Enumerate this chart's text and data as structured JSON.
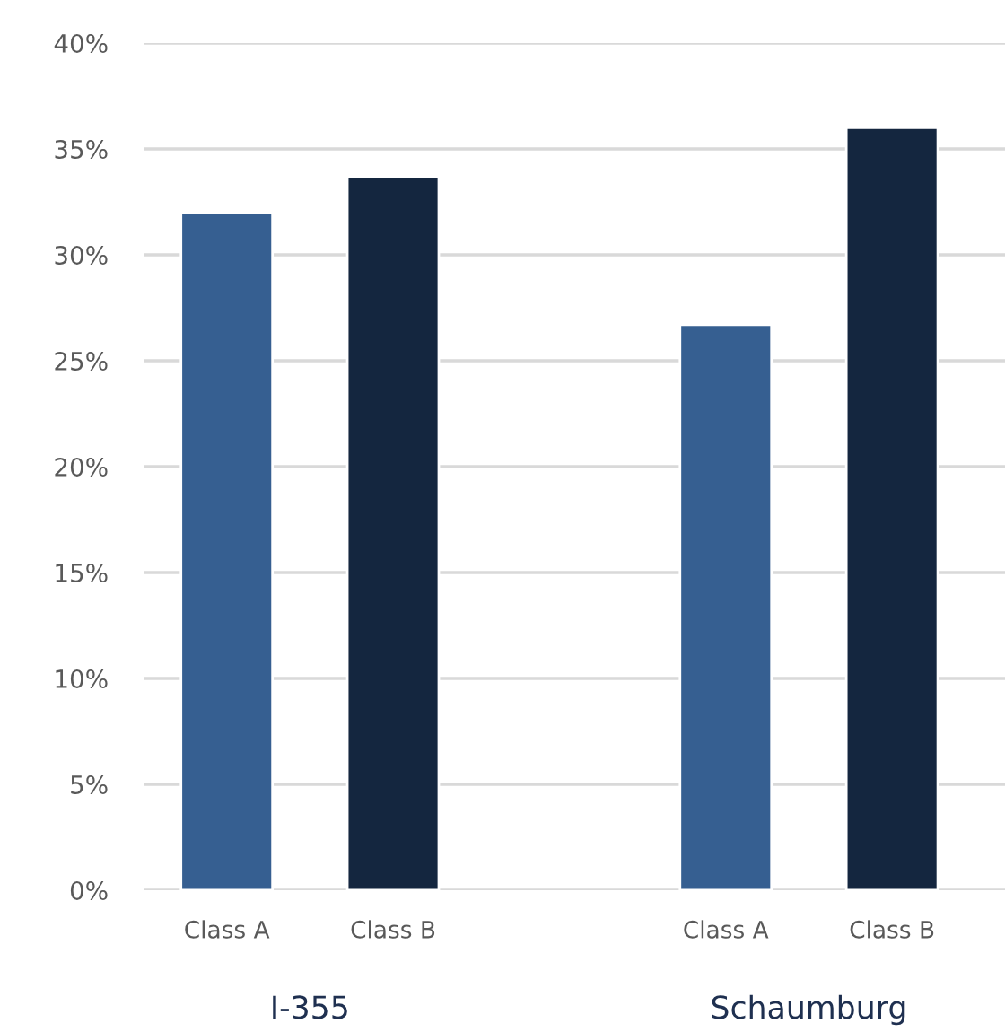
{
  "chart_data": {
    "type": "bar",
    "categories": [
      "Class A",
      "Class B",
      null,
      "Class A",
      "Class B"
    ],
    "values": [
      32.0,
      33.7,
      null,
      26.7,
      36.0
    ],
    "colors": [
      "#365f91",
      "#14263f",
      "#365f91",
      "#365f91",
      "#14263f"
    ],
    "ylim": [
      0,
      40
    ],
    "yticks": [
      {
        "value": 0,
        "label": "0%"
      },
      {
        "value": 5,
        "label": "5%"
      },
      {
        "value": 10,
        "label": "10%"
      },
      {
        "value": 15,
        "label": "15%"
      },
      {
        "value": 20,
        "label": "20%"
      },
      {
        "value": 25,
        "label": "25%"
      },
      {
        "value": 30,
        "label": "30%"
      },
      {
        "value": 35,
        "label": "35%"
      },
      {
        "value": 40,
        "label": "40%"
      }
    ],
    "grid": "y",
    "annotations": [
      "I-355",
      "Schaumburg"
    ]
  }
}
